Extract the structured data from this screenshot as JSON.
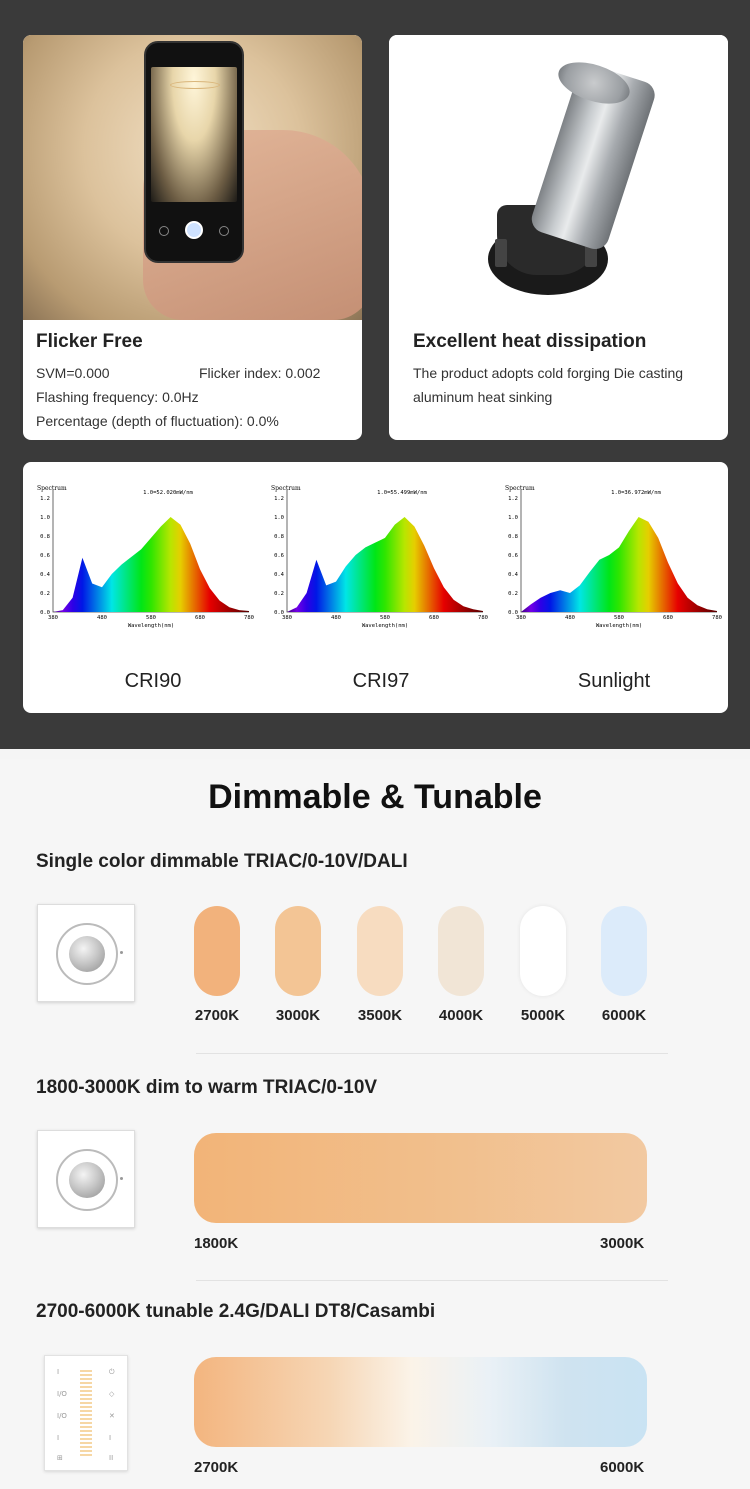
{
  "flicker_card": {
    "title": "Flicker Free",
    "svm": "SVM=0.000",
    "flicker_index": "Flicker index: 0.002",
    "flashing_frequency": "Flashing frequency: 0.0Hz",
    "percentage": "Percentage (depth of fluctuation): 0.0%"
  },
  "heat_card": {
    "title": "Excellent heat dissipation",
    "line1": "The product adopts cold forging Die casting",
    "line2": "aluminum heat sinking"
  },
  "spectra": [
    {
      "caption": "CRI90",
      "header": "1.0=52.020mW/nm"
    },
    {
      "caption": "CRI97",
      "header": "1.0=55.499mW/nm"
    },
    {
      "caption": "Sunlight",
      "header": "1.0=36.972mW/nm"
    }
  ],
  "spectrum_axis": {
    "title": "Spectrum",
    "xlabel": "Wavelength(nm)",
    "yticks": [
      "1.2",
      "1.0",
      "0.8",
      "0.6",
      "0.4",
      "0.2",
      "0.0"
    ],
    "xticks": [
      "380",
      "480",
      "580",
      "680",
      "780"
    ]
  },
  "main": {
    "heading": "Dimmable & Tunable",
    "single": {
      "title": "Single color dimmable TRIAC/0-10V/DALI",
      "swatches": [
        {
          "label": "2700K",
          "color": "#f2b27c"
        },
        {
          "label": "3000K",
          "color": "#f3c595"
        },
        {
          "label": "3500K",
          "color": "#f7dcc0"
        },
        {
          "label": "4000K",
          "color": "#f1e5d6"
        },
        {
          "label": "5000K",
          "color": "#ffffff"
        },
        {
          "label": "6000K",
          "color": "#dcebfa"
        }
      ]
    },
    "dim_to_warm": {
      "title": "1800-3000K dim to warm TRIAC/0-10V",
      "start": "1800K",
      "end": "3000K"
    },
    "tunable": {
      "title": "2700-6000K tunable 2.4G/DALI DT8/Casambi",
      "start": "2700K",
      "end": "6000K"
    }
  }
}
